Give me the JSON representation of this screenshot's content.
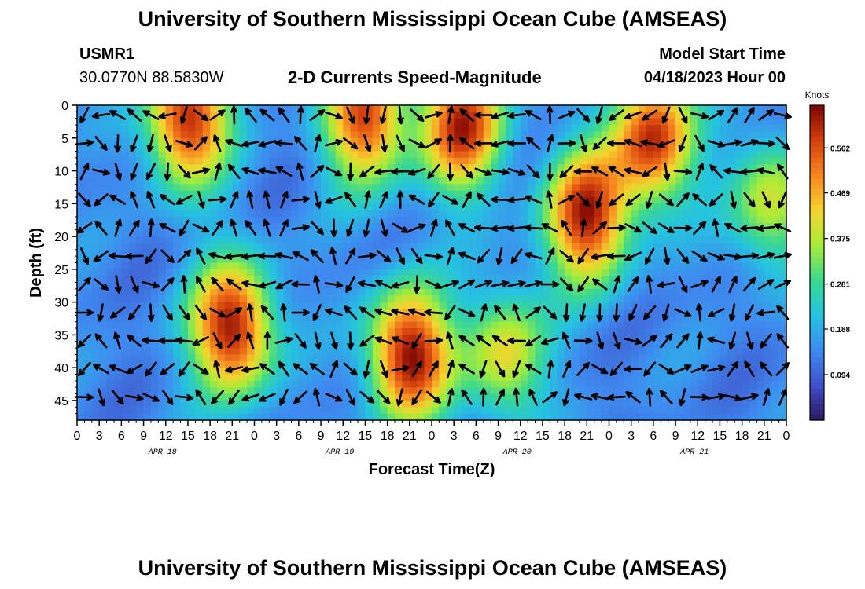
{
  "header": {
    "title": "University of Southern Mississippi Ocean Cube (AMSEAS)",
    "station": "USMR1",
    "coords": "30.0770N  88.5830W",
    "subtitle": "2-D Currents Speed-Magnitude",
    "model_label": "Model Start Time",
    "model_time": "04/18/2023 Hour 00",
    "footer_title": "University of Southern Mississippi Ocean Cube (AMSEAS)"
  },
  "chart_data": {
    "type": "heatmap",
    "title": "2-D Currents Speed-Magnitude",
    "xlabel": "Forecast Time(Z)",
    "ylabel": "Depth (ft)",
    "x_range_hours": [
      0,
      96
    ],
    "ylim": [
      0,
      48
    ],
    "y_reversed": true,
    "x_tick_labels": [
      "0",
      "3",
      "6",
      "9",
      "12",
      "15",
      "18",
      "21",
      "0",
      "3",
      "6",
      "9",
      "12",
      "15",
      "18",
      "21",
      "0",
      "3",
      "6",
      "9",
      "12",
      "15",
      "18",
      "21",
      "0",
      "3",
      "6",
      "9",
      "12",
      "15",
      "18",
      "21",
      "0"
    ],
    "y_ticks": [
      0,
      5,
      10,
      15,
      20,
      25,
      30,
      35,
      40,
      45
    ],
    "date_labels": [
      {
        "label": "APR 18",
        "hour": 12
      },
      {
        "label": "APR 19",
        "hour": 36
      },
      {
        "label": "APR 20",
        "hour": 60
      },
      {
        "label": "APR 21",
        "hour": 84
      }
    ],
    "colorbar": {
      "label": "Knots",
      "ticks": [
        0.094,
        0.188,
        0.281,
        0.375,
        0.469,
        0.562
      ],
      "range": [
        0.0,
        0.65
      ],
      "colors": [
        "#2a1a5e",
        "#4050c8",
        "#3f8af0",
        "#25c3e0",
        "#3bd890",
        "#a8ec3a",
        "#f6d32e",
        "#f68520",
        "#d4400d",
        "#7a0403"
      ]
    },
    "speed_peaks": [
      {
        "hour": 15,
        "depth": 2,
        "knots": 0.6
      },
      {
        "hour": 21,
        "depth": 34,
        "knots": 0.62
      },
      {
        "hour": 39,
        "depth": 2,
        "knots": 0.55
      },
      {
        "hour": 45,
        "depth": 38,
        "knots": 0.63
      },
      {
        "hour": 52,
        "depth": 3,
        "knots": 0.58
      },
      {
        "hour": 58,
        "depth": 38,
        "knots": 0.4
      },
      {
        "hour": 69,
        "depth": 17,
        "knots": 0.6
      },
      {
        "hour": 78,
        "depth": 5,
        "knots": 0.58
      },
      {
        "hour": 94,
        "depth": 15,
        "knots": 0.38
      }
    ]
  }
}
